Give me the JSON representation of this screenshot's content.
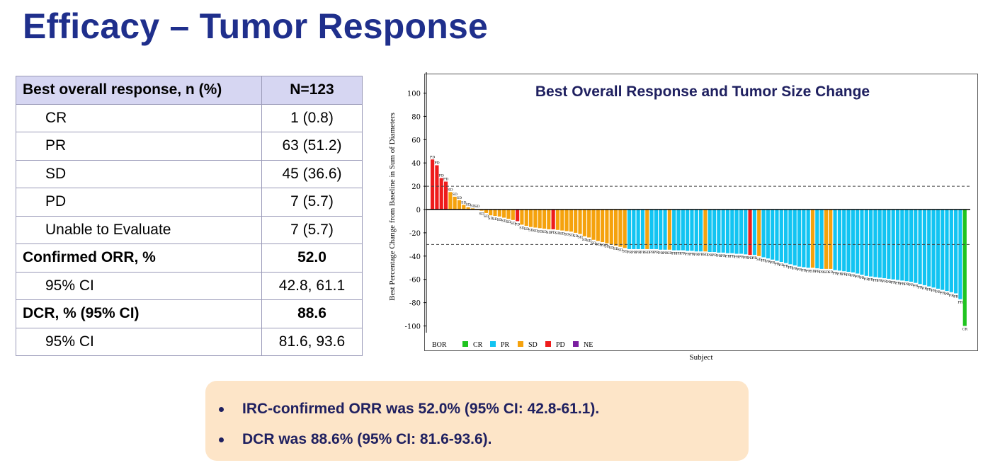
{
  "slide": {
    "title": "Efficacy – Tumor Response"
  },
  "table": {
    "header": [
      "Best overall response, n (%)",
      "N=123"
    ],
    "rows": [
      {
        "label": "CR",
        "value": "1 (0.8)",
        "indent": true,
        "bold": false
      },
      {
        "label": "PR",
        "value": "63 (51.2)",
        "indent": true,
        "bold": false
      },
      {
        "label": "SD",
        "value": "45 (36.6)",
        "indent": true,
        "bold": false
      },
      {
        "label": "PD",
        "value": "7 (5.7)",
        "indent": true,
        "bold": false
      },
      {
        "label": "Unable to Evaluate",
        "value": "7 (5.7)",
        "indent": true,
        "bold": false
      },
      {
        "label": "Confirmed ORR, %",
        "value": "52.0",
        "indent": false,
        "bold": true
      },
      {
        "label": "95% CI",
        "value": "42.8, 61.1",
        "indent": true,
        "bold": false
      },
      {
        "label": "DCR, % (95% CI)",
        "value": "88.6",
        "indent": false,
        "bold": true
      },
      {
        "label": "95% CI",
        "value": "81.6, 93.6",
        "indent": true,
        "bold": false
      }
    ]
  },
  "chart_data": {
    "type": "bar",
    "title": "Best Overall Response and Tumor Size Change",
    "xlabel": "Subject",
    "ylabel": "Best Percentage Change from Baseline in Sum of Diameters",
    "ylim": [
      -110,
      110
    ],
    "yticks": [
      100,
      80,
      60,
      40,
      20,
      0,
      -20,
      -40,
      -60,
      -80,
      -100
    ],
    "reference_lines": [
      20,
      -30
    ],
    "legend": {
      "title": "BOR",
      "position": "bottom-left",
      "items": [
        {
          "label": "CR",
          "color": "#1fc41f"
        },
        {
          "label": "PR",
          "color": "#12c4f2"
        },
        {
          "label": "SD",
          "color": "#f5a20d"
        },
        {
          "label": "PD",
          "color": "#ee1c1c"
        },
        {
          "label": "NE",
          "color": "#7a1fa0"
        }
      ]
    },
    "colors": {
      "CR": "#1fc41f",
      "PR": "#12c4f2",
      "SD": "#f5a20d",
      "PD": "#ee1c1c",
      "NE": "#7a1fa0"
    },
    "bars": [
      {
        "v": 43,
        "r": "PD"
      },
      {
        "v": 38,
        "r": "PD"
      },
      {
        "v": 27,
        "r": "PD"
      },
      {
        "v": 24,
        "r": "PD"
      },
      {
        "v": 15,
        "r": "SD"
      },
      {
        "v": 11,
        "r": "SD"
      },
      {
        "v": 8,
        "r": "SD"
      },
      {
        "v": 4,
        "r": "SD"
      },
      {
        "v": 2,
        "r": "SD"
      },
      {
        "v": 1,
        "r": "SD"
      },
      {
        "v": 0.5,
        "r": "SD"
      },
      {
        "v": -1,
        "r": "SD"
      },
      {
        "v": -3,
        "r": "SD"
      },
      {
        "v": -5,
        "r": "SD"
      },
      {
        "v": -5.5,
        "r": "SD"
      },
      {
        "v": -6,
        "r": "SD"
      },
      {
        "v": -7,
        "r": "SD"
      },
      {
        "v": -8,
        "r": "SD"
      },
      {
        "v": -9,
        "r": "SD"
      },
      {
        "v": -10,
        "r": "PD"
      },
      {
        "v": -13,
        "r": "SD"
      },
      {
        "v": -14,
        "r": "SD"
      },
      {
        "v": -15,
        "r": "SD"
      },
      {
        "v": -15.5,
        "r": "SD"
      },
      {
        "v": -16,
        "r": "SD"
      },
      {
        "v": -16.5,
        "r": "SD"
      },
      {
        "v": -17,
        "r": "SD"
      },
      {
        "v": -17,
        "r": "PD"
      },
      {
        "v": -17.5,
        "r": "SD"
      },
      {
        "v": -18,
        "r": "SD"
      },
      {
        "v": -18.5,
        "r": "SD"
      },
      {
        "v": -19,
        "r": "SD"
      },
      {
        "v": -20,
        "r": "SD"
      },
      {
        "v": -21,
        "r": "SD"
      },
      {
        "v": -23,
        "r": "SD"
      },
      {
        "v": -24,
        "r": "SD"
      },
      {
        "v": -26,
        "r": "SD"
      },
      {
        "v": -27,
        "r": "SD"
      },
      {
        "v": -28,
        "r": "SD"
      },
      {
        "v": -29,
        "r": "SD"
      },
      {
        "v": -30,
        "r": "SD"
      },
      {
        "v": -31,
        "r": "SD"
      },
      {
        "v": -32,
        "r": "SD"
      },
      {
        "v": -33,
        "r": "SD"
      },
      {
        "v": -34,
        "r": "PR"
      },
      {
        "v": -34,
        "r": "PR"
      },
      {
        "v": -34,
        "r": "PR"
      },
      {
        "v": -34,
        "r": "PR"
      },
      {
        "v": -34,
        "r": "SD"
      },
      {
        "v": -34,
        "r": "PR"
      },
      {
        "v": -34,
        "r": "PR"
      },
      {
        "v": -34.5,
        "r": "PR"
      },
      {
        "v": -34.5,
        "r": "PR"
      },
      {
        "v": -34.5,
        "r": "SD"
      },
      {
        "v": -35,
        "r": "PR"
      },
      {
        "v": -35,
        "r": "PR"
      },
      {
        "v": -35,
        "r": "PR"
      },
      {
        "v": -35.5,
        "r": "PR"
      },
      {
        "v": -35.5,
        "r": "PR"
      },
      {
        "v": -36,
        "r": "PR"
      },
      {
        "v": -36,
        "r": "PR"
      },
      {
        "v": -36,
        "r": "SD"
      },
      {
        "v": -36.5,
        "r": "PR"
      },
      {
        "v": -36.5,
        "r": "PR"
      },
      {
        "v": -37,
        "r": "PR"
      },
      {
        "v": -37,
        "r": "PR"
      },
      {
        "v": -37.5,
        "r": "PR"
      },
      {
        "v": -37.5,
        "r": "PR"
      },
      {
        "v": -38,
        "r": "PR"
      },
      {
        "v": -38,
        "r": "PR"
      },
      {
        "v": -38.5,
        "r": "PR"
      },
      {
        "v": -39,
        "r": "PD"
      },
      {
        "v": -39,
        "r": "PR"
      },
      {
        "v": -40,
        "r": "SD"
      },
      {
        "v": -41,
        "r": "PR"
      },
      {
        "v": -42,
        "r": "PR"
      },
      {
        "v": -43,
        "r": "PR"
      },
      {
        "v": -44,
        "r": "PR"
      },
      {
        "v": -45,
        "r": "PR"
      },
      {
        "v": -46,
        "r": "PR"
      },
      {
        "v": -47,
        "r": "PR"
      },
      {
        "v": -48,
        "r": "PR"
      },
      {
        "v": -49,
        "r": "PR"
      },
      {
        "v": -49.5,
        "r": "PR"
      },
      {
        "v": -50,
        "r": "PR"
      },
      {
        "v": -50,
        "r": "SD"
      },
      {
        "v": -50.5,
        "r": "PR"
      },
      {
        "v": -51,
        "r": "PR"
      },
      {
        "v": -51,
        "r": "SD"
      },
      {
        "v": -51,
        "r": "SD"
      },
      {
        "v": -52,
        "r": "PR"
      },
      {
        "v": -52.5,
        "r": "PR"
      },
      {
        "v": -53,
        "r": "PR"
      },
      {
        "v": -53.5,
        "r": "PR"
      },
      {
        "v": -54,
        "r": "PR"
      },
      {
        "v": -55,
        "r": "PR"
      },
      {
        "v": -56,
        "r": "PR"
      },
      {
        "v": -57,
        "r": "PR"
      },
      {
        "v": -57.5,
        "r": "PR"
      },
      {
        "v": -58,
        "r": "PR"
      },
      {
        "v": -58.5,
        "r": "PR"
      },
      {
        "v": -59,
        "r": "PR"
      },
      {
        "v": -59.5,
        "r": "PR"
      },
      {
        "v": -60,
        "r": "PR"
      },
      {
        "v": -60.5,
        "r": "PR"
      },
      {
        "v": -61,
        "r": "PR"
      },
      {
        "v": -61.5,
        "r": "PR"
      },
      {
        "v": -62,
        "r": "PR"
      },
      {
        "v": -63,
        "r": "PR"
      },
      {
        "v": -64,
        "r": "PR"
      },
      {
        "v": -65,
        "r": "PR"
      },
      {
        "v": -66,
        "r": "PR"
      },
      {
        "v": -67,
        "r": "PR"
      },
      {
        "v": -68,
        "r": "PR"
      },
      {
        "v": -69,
        "r": "PR"
      },
      {
        "v": -70,
        "r": "PR"
      },
      {
        "v": -71,
        "r": "PR"
      },
      {
        "v": -72,
        "r": "PR"
      },
      {
        "v": -77,
        "r": "PR"
      },
      {
        "v": -100,
        "r": "CR"
      }
    ]
  },
  "callout": {
    "bullets": [
      "IRC-confirmed ORR was 52.0% (95% CI: 42.8-61.1).",
      "DCR was 88.6% (95% CI: 81.6-93.6)."
    ]
  }
}
